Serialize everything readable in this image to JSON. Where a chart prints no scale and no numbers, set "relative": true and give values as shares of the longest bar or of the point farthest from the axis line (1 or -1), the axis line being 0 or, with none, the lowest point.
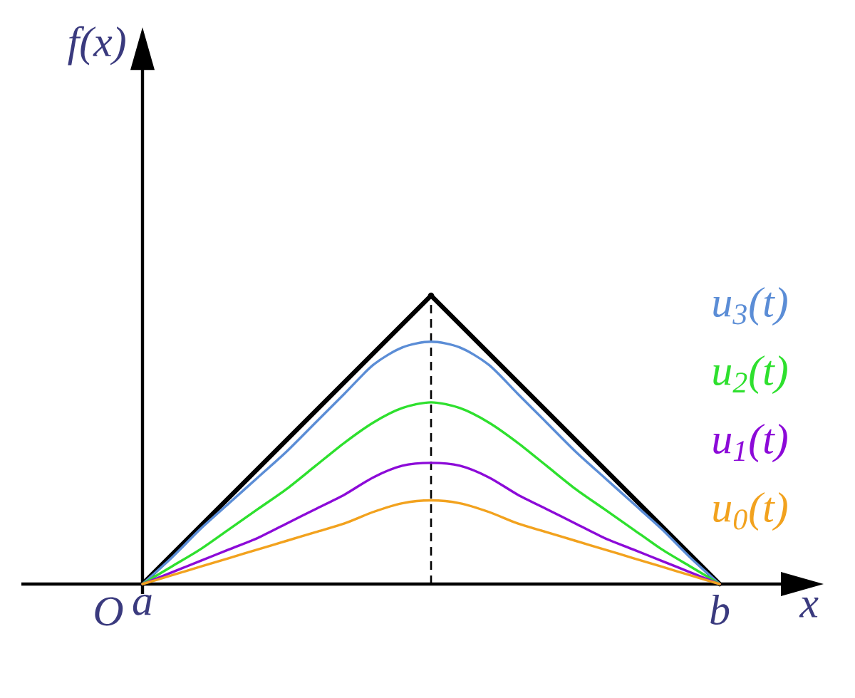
{
  "chart_data": {
    "type": "line",
    "relative": true,
    "xlabel": "x",
    "categories": [
      "a",
      null,
      null,
      null,
      null,
      null,
      null,
      null,
      null,
      null,
      null,
      null,
      null,
      null,
      null,
      null,
      null,
      null,
      null,
      null,
      "b"
    ],
    "annotations": [
      "f(x)",
      "O"
    ],
    "series": [
      {
        "color": "#000000",
        "values": [
          0,
          0.1,
          0.2,
          0.3,
          0.4,
          0.5,
          0.6,
          0.7,
          0.8,
          0.9,
          1,
          0.9,
          0.8,
          0.7,
          0.6,
          0.5,
          0.4,
          0.3,
          0.2,
          0.1,
          0
        ]
      },
      {
        "type": "lollipop",
        "color": "#000000",
        "line_style": "dashed",
        "marker": "circle",
        "values": [
          null,
          null,
          null,
          null,
          null,
          null,
          null,
          null,
          null,
          null,
          1,
          null,
          null,
          null,
          null,
          null,
          null,
          null,
          null,
          null,
          null
        ]
      },
      {
        "name": "u$_{3}$(t)",
        "color": "#5b8dd6",
        "values": [
          0,
          0.09,
          0.19,
          0.28,
          0.37,
          0.46,
          0.56,
          0.66,
          0.76,
          0.82,
          0.84,
          0.82,
          0.76,
          0.66,
          0.56,
          0.46,
          0.37,
          0.28,
          0.19,
          0.09,
          0
        ]
      },
      {
        "name": "u$_{2}$(t)",
        "color": "#2ee02e",
        "values": [
          0,
          0.06,
          0.12,
          0.19,
          0.26,
          0.33,
          0.41,
          0.49,
          0.56,
          0.61,
          0.63,
          0.61,
          0.56,
          0.49,
          0.41,
          0.33,
          0.26,
          0.19,
          0.12,
          0.06,
          0
        ]
      },
      {
        "name": "u$_{1}$(t)",
        "color": "#8c0ad8",
        "values": [
          0,
          0.04,
          0.08,
          0.12,
          0.16,
          0.21,
          0.26,
          0.31,
          0.37,
          0.41,
          0.42,
          0.41,
          0.37,
          0.31,
          0.26,
          0.21,
          0.16,
          0.12,
          0.08,
          0.04,
          0
        ]
      },
      {
        "name": "u$_{0}$(t)",
        "color": "#f2a21e",
        "values": [
          0,
          0.03,
          0.06,
          0.09,
          0.12,
          0.15,
          0.18,
          0.21,
          0.25,
          0.28,
          0.29,
          0.28,
          0.25,
          0.21,
          0.18,
          0.15,
          0.12,
          0.09,
          0.06,
          0.03,
          0
        ]
      }
    ]
  }
}
